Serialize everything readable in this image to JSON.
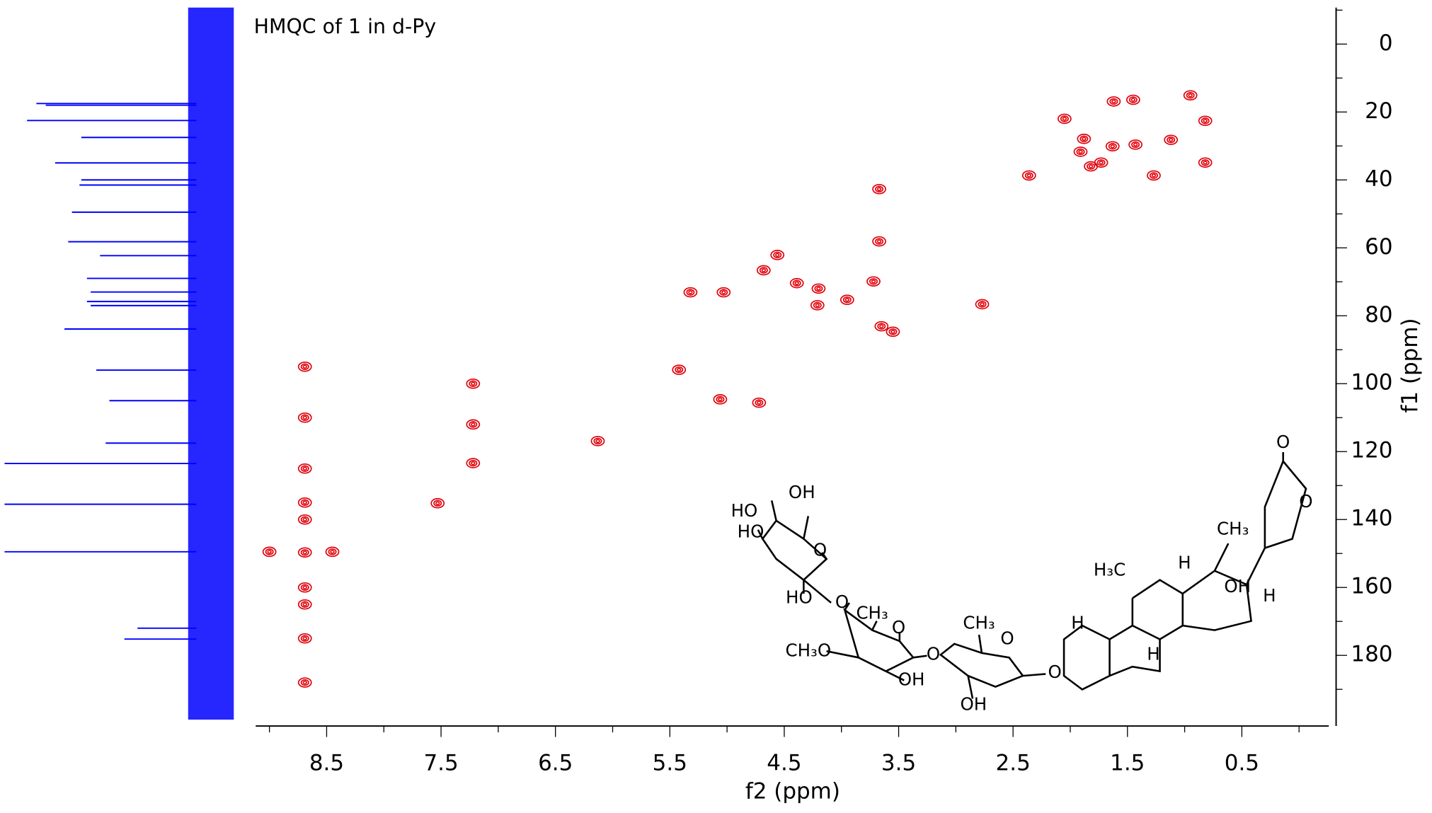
{
  "chart_data": {
    "type": "scatter",
    "title": "HMQC of 1 in d-Py",
    "x_label": "f2 (ppm)",
    "y_label": "f1 (ppm)",
    "xlim": [
      9.12,
      -0.26
    ],
    "ylim": [
      -10.75,
      200.8
    ],
    "xticks": [
      8.5,
      7.5,
      6.5,
      5.5,
      4.5,
      3.5,
      2.5,
      1.5,
      0.5
    ],
    "xticks_minor": [
      9,
      8,
      7,
      6,
      5,
      4,
      3,
      2,
      1,
      0
    ],
    "yticks": [
      0,
      20,
      40,
      60,
      80,
      100,
      120,
      140,
      160,
      180
    ],
    "yticks_minor": [
      -10,
      10,
      30,
      50,
      70,
      90,
      110,
      130,
      150,
      170,
      190
    ],
    "series": [
      {
        "name": "cross peaks",
        "color": "#e0000a",
        "x": [
          8.69,
          8.45,
          9.0,
          8.69,
          8.69,
          8.69,
          8.69,
          8.69,
          8.69,
          8.69,
          8.69,
          8.69,
          7.53,
          7.22,
          7.22,
          7.22,
          6.13,
          5.42,
          5.32,
          5.03,
          5.06,
          4.72,
          4.68,
          4.56,
          4.39,
          4.21,
          4.2,
          3.95,
          3.67,
          3.65,
          3.55,
          3.72,
          3.67,
          2.77,
          2.36,
          2.05,
          1.88,
          1.82,
          1.73,
          1.62,
          1.45,
          1.63,
          1.43,
          1.27,
          1.12,
          0.95,
          0.82,
          0.82,
          1.91
        ],
        "y": [
          149.7,
          149.5,
          149.5,
          95,
          110,
          125,
          135,
          140,
          160,
          165,
          175,
          188,
          135.2,
          123.4,
          112,
          100,
          116.9,
          95.9,
          73.1,
          73.1,
          104.6,
          105.6,
          66.6,
          62.1,
          70.4,
          76.9,
          72.0,
          75.3,
          58.1,
          83.1,
          84.7,
          69.9,
          42.7,
          76.6,
          38.7,
          22.0,
          27.9,
          36.0,
          34.9,
          16.9,
          16.4,
          30.1,
          29.6,
          38.7,
          28.2,
          15.1,
          22.6,
          34.9,
          31.7
        ]
      }
    ],
    "projection": {
      "color": "#0000ff",
      "ppm": [
        123.5,
        135.5,
        149.5,
        17.5,
        18,
        22.5,
        27.5,
        35,
        40,
        41.5,
        49.5,
        58.2,
        62.3,
        69,
        73,
        75.8,
        77,
        83.9,
        96,
        105,
        117.5,
        172,
        175.2
      ],
      "intensity": [
        1.0,
        1.0,
        1.0,
        0.83,
        0.78,
        0.88,
        0.59,
        0.73,
        0.59,
        0.6,
        0.64,
        0.66,
        0.49,
        0.56,
        0.54,
        0.56,
        0.54,
        0.68,
        0.51,
        0.44,
        0.46,
        0.29,
        0.36
      ]
    },
    "structure_labels": [
      "OH",
      "HO",
      "HO",
      "O",
      "HO",
      "O",
      "CH₃",
      "O",
      "CH₃O",
      "O",
      "OH",
      "CH₃",
      "O",
      "OH",
      "O",
      "O",
      "O",
      "CH₃",
      "H₃C",
      "H",
      "OH",
      "H",
      "H",
      "H"
    ]
  }
}
